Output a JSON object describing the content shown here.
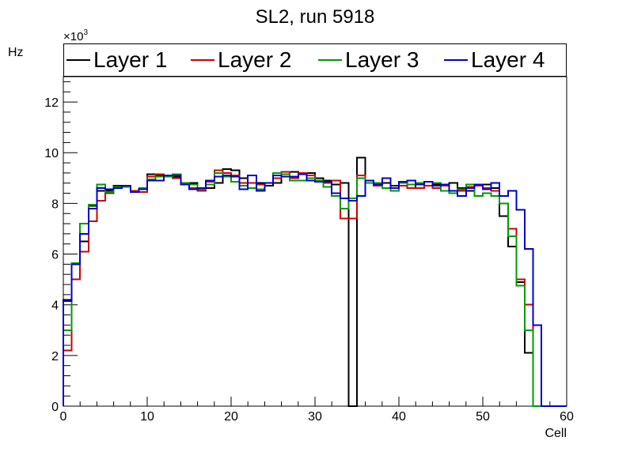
{
  "chart_data": {
    "type": "histogram-step",
    "title": "SL2, run 5918",
    "xlabel": "Cell",
    "ylabel": "Hz",
    "y_exponent_label": "×10",
    "y_exponent_power": "3",
    "xlim": [
      0,
      60
    ],
    "ylim": [
      0,
      13
    ],
    "x_ticks": [
      "0",
      "10",
      "20",
      "30",
      "40",
      "50",
      "60"
    ],
    "y_ticks": [
      "0",
      "2",
      "4",
      "6",
      "8",
      "10",
      "12"
    ],
    "legend_position": "top",
    "series": [
      {
        "name": "Layer 1",
        "color": "#000000",
        "values": [
          4.2,
          5.6,
          6.5,
          7.9,
          8.5,
          8.5,
          8.7,
          8.7,
          8.5,
          8.6,
          9.15,
          9.1,
          9.1,
          9.05,
          8.8,
          8.8,
          8.6,
          8.6,
          8.8,
          9.35,
          9.3,
          9.0,
          8.8,
          8.8,
          8.7,
          8.8,
          9.15,
          9.25,
          9.15,
          9.2,
          9.0,
          8.9,
          8.75,
          8.8,
          0,
          9.8,
          8.8,
          8.8,
          8.8,
          8.7,
          8.7,
          8.6,
          8.8,
          8.7,
          8.75,
          8.7,
          8.8,
          8.6,
          8.5,
          8.75,
          8.75,
          8.6,
          7.5,
          6.3,
          4.9,
          2.1,
          0,
          0,
          0,
          0
        ]
      },
      {
        "name": "Layer 2",
        "color": "#cc0000",
        "values": [
          2.2,
          5.0,
          6.1,
          7.3,
          8.1,
          8.4,
          8.6,
          8.7,
          8.5,
          8.45,
          9.05,
          9.15,
          9.1,
          9.0,
          8.8,
          8.6,
          8.5,
          8.85,
          9.3,
          9.2,
          9.1,
          8.8,
          8.8,
          8.75,
          8.8,
          9.0,
          9.25,
          9.0,
          9.2,
          9.1,
          8.85,
          8.8,
          8.9,
          7.4,
          7.4,
          9.1,
          8.8,
          8.7,
          8.6,
          8.5,
          8.7,
          8.6,
          8.6,
          8.7,
          8.6,
          8.7,
          8.4,
          8.5,
          8.65,
          8.7,
          8.6,
          8.5,
          8.0,
          7.0,
          5.0,
          4.0,
          0,
          0,
          0,
          0
        ]
      },
      {
        "name": "Layer 3",
        "color": "#009900",
        "values": [
          3.0,
          5.65,
          7.2,
          7.95,
          8.75,
          8.45,
          8.65,
          8.65,
          8.45,
          8.6,
          8.95,
          9.05,
          9.05,
          9.15,
          8.8,
          8.75,
          8.55,
          8.75,
          9.2,
          9.05,
          8.85,
          8.7,
          8.6,
          8.55,
          8.8,
          9.2,
          9.15,
          8.9,
          8.9,
          9.0,
          8.9,
          8.65,
          8.3,
          7.8,
          8.2,
          9.0,
          8.8,
          8.8,
          8.6,
          8.5,
          8.8,
          8.75,
          8.8,
          8.85,
          8.8,
          8.5,
          8.4,
          8.55,
          8.75,
          8.3,
          8.4,
          8.3,
          8.0,
          6.7,
          4.75,
          3.0,
          0,
          0,
          0,
          0
        ]
      },
      {
        "name": "Layer 4",
        "color": "#0000cc",
        "values": [
          4.15,
          5.6,
          6.8,
          7.8,
          8.6,
          8.55,
          8.6,
          8.7,
          8.45,
          8.55,
          8.9,
          8.9,
          9.1,
          9.1,
          8.75,
          8.55,
          8.6,
          8.9,
          9.05,
          9.1,
          9.05,
          8.55,
          9.1,
          8.5,
          8.8,
          9.1,
          9.05,
          9.05,
          9.15,
          8.9,
          8.85,
          8.85,
          8.4,
          8.2,
          8.1,
          8.3,
          8.9,
          8.75,
          9.0,
          8.6,
          8.85,
          8.9,
          8.75,
          8.85,
          8.7,
          8.75,
          8.5,
          8.3,
          8.6,
          8.75,
          8.55,
          8.8,
          8.3,
          8.5,
          7.75,
          6.2,
          3.2,
          0,
          0,
          0
        ]
      }
    ]
  }
}
